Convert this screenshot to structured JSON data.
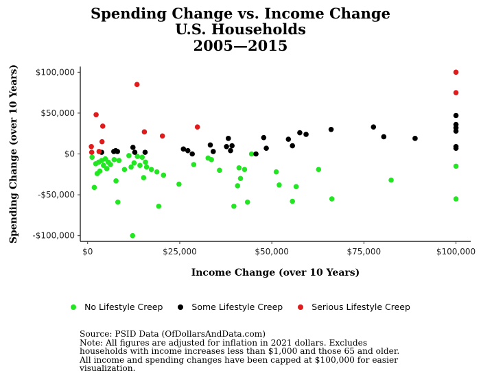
{
  "title_lines": [
    "Spending Change vs. Income Change",
    "U.S. Households",
    "2005—2015"
  ],
  "legend": [
    {
      "label": "No Lifestyle Creep",
      "color": "#22e622"
    },
    {
      "label": "Some Lifestyle Creep",
      "color": "#000000"
    },
    {
      "label": "Serious Lifestyle Creep",
      "color": "#e01b1b"
    }
  ],
  "footnote": {
    "source": "Source: PSID Data (OfDollarsAndData.com)",
    "note_lines": [
      "Note: All figures are adjusted for inflation in 2021 dollars. Excludes",
      "households with income increases less than $1,000 and those 65 and older.",
      "All income and spending changes have been capped at $100,000 for easier",
      "visualization."
    ]
  },
  "chart_data": {
    "type": "scatter",
    "title": "Spending Change vs. Income Change U.S. Households 2005—2015",
    "xlabel": "Income Change (over 10 Years)",
    "ylabel": "Spending Change (over 10 Years)",
    "xlim": [
      -2000,
      104000
    ],
    "ylim": [
      -107000,
      107000
    ],
    "x_ticks": [
      0,
      25000,
      50000,
      75000,
      100000
    ],
    "x_tick_labels": [
      "$0",
      "$25,000",
      "$50,000",
      "$75,000",
      "$100,000"
    ],
    "y_ticks": [
      -100000,
      -50000,
      0,
      50000,
      100000
    ],
    "y_tick_labels": [
      "-$100,000",
      "-$50,000",
      "$0",
      "$50,000",
      "$100,000"
    ],
    "grid": false,
    "legend_position": "bottom",
    "series": [
      {
        "name": "No Lifestyle Creep",
        "color": "#22e622",
        "points": [
          [
            1200,
            -4000
          ],
          [
            1800,
            -41000
          ],
          [
            2200,
            -12000
          ],
          [
            2600,
            -24000
          ],
          [
            3000,
            -10000
          ],
          [
            3300,
            -21000
          ],
          [
            3800,
            -8000
          ],
          [
            4300,
            -14000
          ],
          [
            4800,
            -6000
          ],
          [
            5200,
            -18000
          ],
          [
            5600,
            -10000
          ],
          [
            6200,
            -13000
          ],
          [
            7200,
            -7000
          ],
          [
            7700,
            -33000
          ],
          [
            8200,
            -59000
          ],
          [
            8500,
            -8000
          ],
          [
            10000,
            -19000
          ],
          [
            11200,
            -2000
          ],
          [
            11800,
            -16000
          ],
          [
            12200,
            -100000
          ],
          [
            12600,
            -11000
          ],
          [
            13500,
            -3000
          ],
          [
            14200,
            -14000
          ],
          [
            14800,
            -4000
          ],
          [
            15200,
            -29000
          ],
          [
            15700,
            -10000
          ],
          [
            16000,
            -16000
          ],
          [
            17300,
            -19000
          ],
          [
            18800,
            -22000
          ],
          [
            19300,
            -64000
          ],
          [
            20600,
            -26000
          ],
          [
            24800,
            -37000
          ],
          [
            28800,
            -13000
          ],
          [
            32700,
            -5000
          ],
          [
            33600,
            -7000
          ],
          [
            35800,
            -20000
          ],
          [
            39700,
            -64000
          ],
          [
            40700,
            -39000
          ],
          [
            41100,
            -17000
          ],
          [
            41500,
            -30000
          ],
          [
            42600,
            -19000
          ],
          [
            43400,
            -59000
          ],
          [
            44500,
            0
          ],
          [
            51200,
            -22000
          ],
          [
            52000,
            -38000
          ],
          [
            55600,
            -58000
          ],
          [
            56600,
            -40000
          ],
          [
            62700,
            -19000
          ],
          [
            66300,
            -55000
          ],
          [
            82400,
            -32000
          ],
          [
            100000,
            -15000
          ],
          [
            100000,
            -55000
          ]
        ]
      },
      {
        "name": "Some Lifestyle Creep",
        "color": "#000000",
        "points": [
          [
            3800,
            2000
          ],
          [
            7100,
            3000
          ],
          [
            7600,
            4000
          ],
          [
            8100,
            3000
          ],
          [
            12300,
            8000
          ],
          [
            12800,
            2000
          ],
          [
            15600,
            2000
          ],
          [
            26000,
            6000
          ],
          [
            27200,
            4000
          ],
          [
            28400,
            0
          ],
          [
            33300,
            11000
          ],
          [
            34100,
            3000
          ],
          [
            37700,
            9000
          ],
          [
            38200,
            19000
          ],
          [
            38800,
            4000
          ],
          [
            39200,
            10000
          ],
          [
            45700,
            0
          ],
          [
            47800,
            20000
          ],
          [
            48500,
            7000
          ],
          [
            54500,
            18000
          ],
          [
            55600,
            10000
          ],
          [
            57600,
            26000
          ],
          [
            59300,
            24000
          ],
          [
            66100,
            30000
          ],
          [
            77600,
            33000
          ],
          [
            80400,
            21000
          ],
          [
            88900,
            19000
          ],
          [
            100000,
            47000
          ],
          [
            100000,
            36000
          ],
          [
            100000,
            32000
          ],
          [
            100000,
            28000
          ],
          [
            100000,
            9000
          ],
          [
            100000,
            7000
          ]
        ]
      },
      {
        "name": "Serious Lifestyle Creep",
        "color": "#e01b1b",
        "points": [
          [
            1000,
            9000
          ],
          [
            1100,
            2000
          ],
          [
            2300,
            48000
          ],
          [
            3100,
            3000
          ],
          [
            3900,
            15000
          ],
          [
            4100,
            34000
          ],
          [
            13400,
            85000
          ],
          [
            15400,
            27000
          ],
          [
            20300,
            22000
          ],
          [
            29800,
            33000
          ],
          [
            100000,
            100000
          ],
          [
            100000,
            75000
          ]
        ]
      }
    ]
  }
}
